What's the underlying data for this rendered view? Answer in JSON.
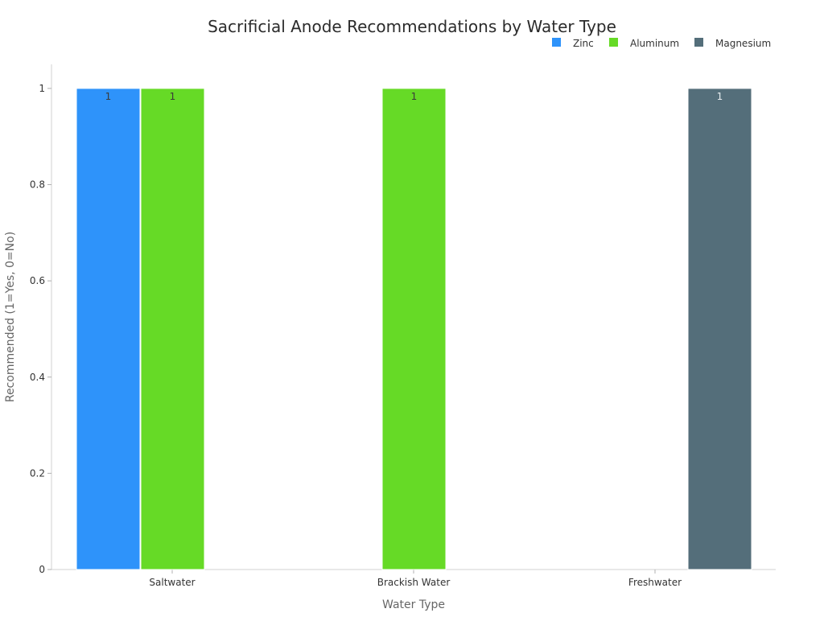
{
  "chart_data": {
    "type": "bar",
    "title": "Sacrificial Anode Recommendations by Water Type",
    "xlabel": "Water Type",
    "ylabel": "Recommended (1=Yes, 0=No)",
    "categories": [
      "Saltwater",
      "Brackish Water",
      "Freshwater"
    ],
    "series": [
      {
        "name": "Zinc",
        "color": "#2e93fa",
        "values": [
          1,
          0,
          0
        ]
      },
      {
        "name": "Aluminum",
        "color": "#66da26",
        "values": [
          1,
          1,
          0
        ]
      },
      {
        "name": "Magnesium",
        "color": "#546e7a",
        "values": [
          0,
          0,
          1
        ]
      }
    ],
    "ylim": [
      0,
      1.05
    ],
    "yticks": [
      0,
      0.2,
      0.4,
      0.6,
      0.8,
      1
    ],
    "ytick_labels": [
      "0",
      "0.2",
      "0.4",
      "0.6",
      "0.8",
      "1"
    ],
    "legend_position": "top-right",
    "grid": false,
    "data_labels": true
  }
}
